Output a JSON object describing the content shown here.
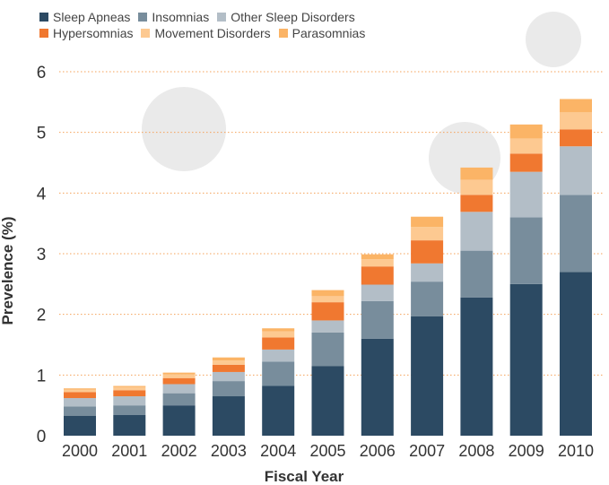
{
  "chart_data": {
    "type": "bar",
    "stacked": true,
    "title": "",
    "xlabel": "Fiscal Year",
    "ylabel": "Prevelence (%)",
    "ylim": [
      0,
      6
    ],
    "yticks": [
      0,
      1,
      2,
      3,
      4,
      5,
      6
    ],
    "grid": "horizontal-dotted",
    "legend_position": "top-left",
    "categories": [
      "2000",
      "2001",
      "2002",
      "2003",
      "2004",
      "2005",
      "2006",
      "2007",
      "2008",
      "2009",
      "2010"
    ],
    "series": [
      {
        "name": "Sleep Apneas",
        "color": "#2c4a63",
        "values": [
          0.33,
          0.34,
          0.5,
          0.65,
          0.82,
          1.15,
          1.6,
          1.97,
          2.28,
          2.5,
          2.7
        ]
      },
      {
        "name": "Insomnias",
        "color": "#788d9c",
        "values": [
          0.15,
          0.16,
          0.2,
          0.25,
          0.4,
          0.55,
          0.62,
          0.57,
          0.77,
          1.1,
          1.27
        ]
      },
      {
        "name": "Other Sleep Disorders",
        "color": "#b3bec7",
        "values": [
          0.14,
          0.15,
          0.15,
          0.15,
          0.2,
          0.2,
          0.27,
          0.3,
          0.64,
          0.75,
          0.8
        ]
      },
      {
        "name": "Hypersomnias",
        "color": "#f07830",
        "values": [
          0.1,
          0.1,
          0.1,
          0.12,
          0.2,
          0.3,
          0.3,
          0.38,
          0.28,
          0.3,
          0.28
        ]
      },
      {
        "name": "Movement Disorders",
        "color": "#fdc991",
        "values": [
          0.04,
          0.05,
          0.06,
          0.07,
          0.1,
          0.1,
          0.12,
          0.22,
          0.25,
          0.25,
          0.28
        ]
      },
      {
        "name": "Parasomnias",
        "color": "#fbb466",
        "values": [
          0.02,
          0.02,
          0.03,
          0.05,
          0.05,
          0.1,
          0.08,
          0.17,
          0.2,
          0.23,
          0.22
        ]
      }
    ]
  },
  "colors": {
    "grid": "#f5a25a",
    "decor": "#eaeaea",
    "text": "#333333"
  }
}
